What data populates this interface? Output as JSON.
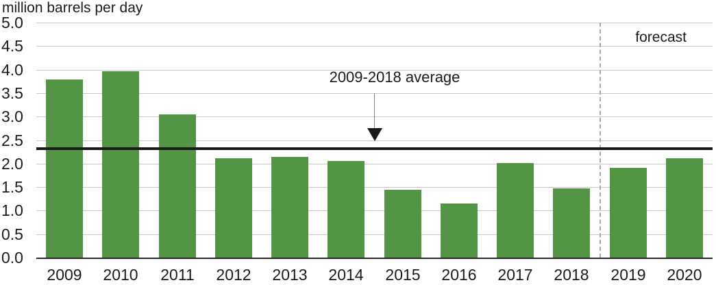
{
  "chart_data": {
    "type": "bar",
    "title": "million barrels per day",
    "categories": [
      "2009",
      "2010",
      "2011",
      "2012",
      "2013",
      "2014",
      "2015",
      "2016",
      "2017",
      "2018",
      "2019",
      "2020"
    ],
    "values": [
      3.79,
      3.97,
      3.05,
      2.11,
      2.14,
      2.05,
      1.44,
      1.15,
      2.01,
      1.47,
      1.91,
      2.11
    ],
    "xlabel": "",
    "ylabel": "million barrels per day",
    "ylim": [
      0,
      5
    ],
    "ytick_step": 0.5,
    "grid": true,
    "legend_position": "none",
    "bar_color": "#539544",
    "gridline_color": "#c8c8c8",
    "axis_line_color": "#262626",
    "average_line": {
      "label": "2009-2018 average",
      "value": 2.32,
      "color": "#1a1a1a"
    },
    "forecast": {
      "label": "forecast",
      "start_category": "2019",
      "divider_style": "dashed"
    }
  }
}
